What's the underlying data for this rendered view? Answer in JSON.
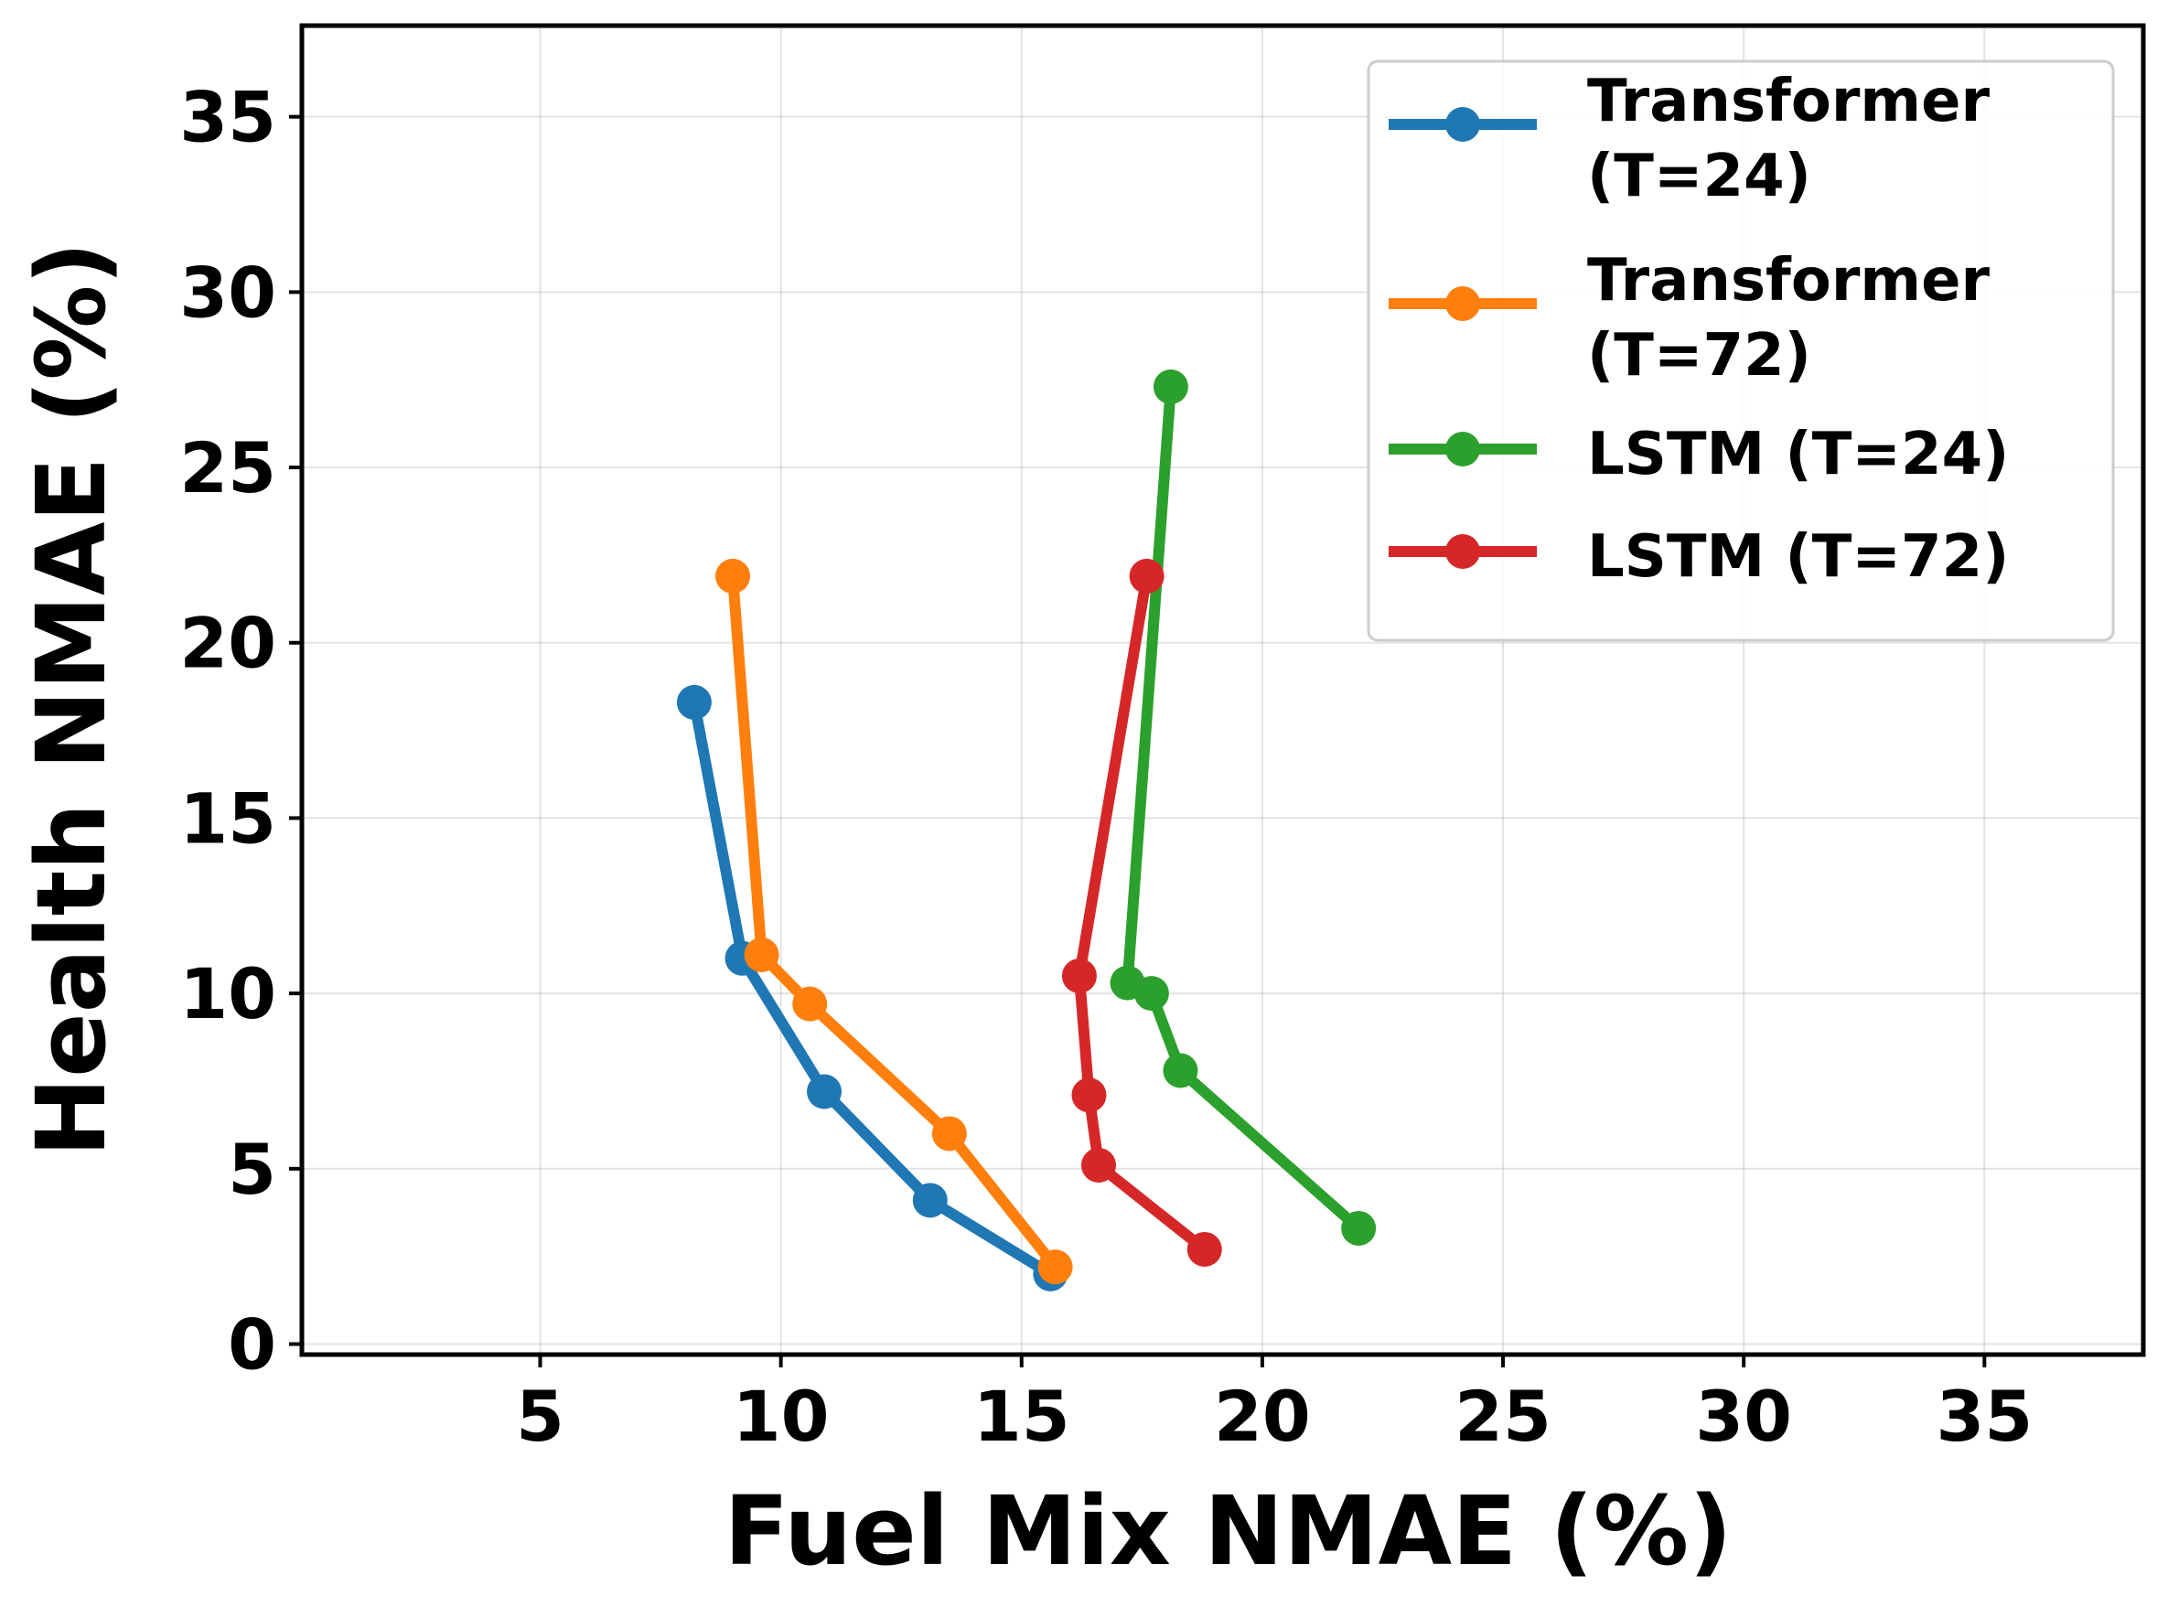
{
  "chart_data": {
    "type": "line",
    "title": "",
    "xlabel": "Fuel Mix NMAE (%)",
    "ylabel": "Health NMAE (%)",
    "xlim": [
      0.05,
      38.3
    ],
    "ylim": [
      -0.3,
      37.6
    ],
    "xticks": [
      5,
      10,
      15,
      20,
      25,
      30,
      35
    ],
    "yticks": [
      0,
      5,
      10,
      15,
      20,
      25,
      30,
      35
    ],
    "grid": true,
    "legend_position": "top-right",
    "series": [
      {
        "name": "Transformer (T=24)",
        "legend_lines": [
          "Transformer",
          "(T=24)"
        ],
        "color": "#1f77b4",
        "x": [
          8.2,
          9.2,
          10.9,
          13.1,
          15.6
        ],
        "y": [
          18.3,
          11.0,
          7.2,
          4.1,
          2.0
        ]
      },
      {
        "name": "Transformer (T=72)",
        "legend_lines": [
          "Transformer",
          "(T=72)"
        ],
        "color": "#ff7f0e",
        "x": [
          9.0,
          9.6,
          10.6,
          13.5,
          15.7
        ],
        "y": [
          21.9,
          11.1,
          9.7,
          6.0,
          2.2
        ]
      },
      {
        "name": "LSTM (T=24)",
        "legend_lines": [
          "LSTM (T=24)"
        ],
        "color": "#2ca02c",
        "x": [
          18.1,
          17.2,
          17.7,
          18.3,
          22.0
        ],
        "y": [
          27.3,
          10.3,
          10.0,
          7.8,
          3.3
        ]
      },
      {
        "name": "LSTM (T=72)",
        "legend_lines": [
          "LSTM (T=72)"
        ],
        "color": "#d62728",
        "x": [
          17.6,
          16.2,
          16.4,
          16.6,
          18.8
        ],
        "y": [
          21.9,
          10.5,
          7.1,
          5.1,
          2.7
        ]
      }
    ]
  }
}
